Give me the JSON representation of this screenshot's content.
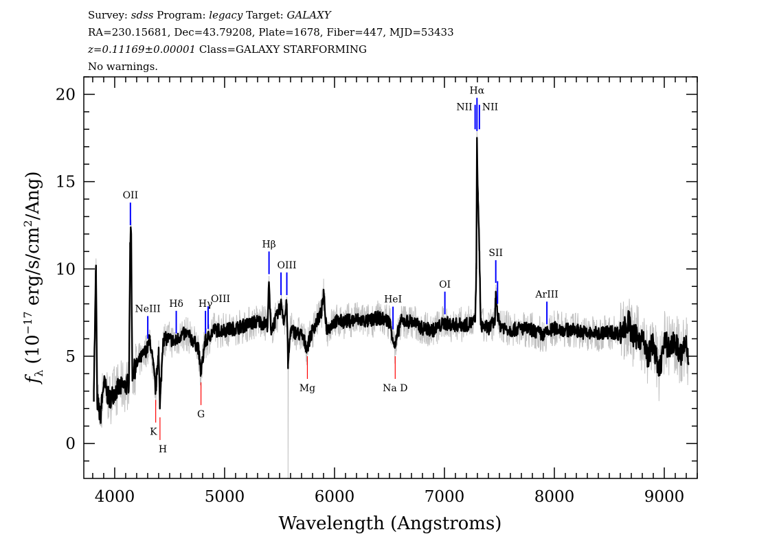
{
  "header": {
    "line1": {
      "survey_label": "Survey: ",
      "survey": "sdss",
      "program_label": " Program: ",
      "program": "legacy",
      "target_label": " Target: ",
      "target": "GALAXY"
    },
    "line2": "RA=230.15681, Dec=43.79208, Plate=1678, Fiber=447, MJD=53433",
    "line3": {
      "z": "z=0.11169±0.00001",
      "class": " Class=GALAXY STARFORMING"
    },
    "line4": "No warnings."
  },
  "chart_data": {
    "type": "line",
    "title": "",
    "xlabel": "Wavelength (Angstroms)",
    "ylabel": {
      "f": "f",
      "sub": "λ",
      "pre": " (10",
      "exp": "−17",
      "mid": " erg/s/cm",
      "exp2": "2",
      "post": "/Ang)"
    },
    "xlim": [
      3719,
      9300
    ],
    "ylim": [
      -2,
      21
    ],
    "x_ticks": [
      4000,
      5000,
      6000,
      7000,
      8000,
      9000
    ],
    "x_tick_labels": [
      "4000",
      "5000",
      "6000",
      "7000",
      "8000",
      "9000"
    ],
    "y_ticks": [
      0,
      5,
      10,
      15,
      20
    ],
    "y_tick_labels": [
      "0",
      "5",
      "10",
      "15",
      "20"
    ],
    "grid": false,
    "colors": {
      "flux": "#000000",
      "error": "#c0c0c0",
      "emission": "#0000ff",
      "absorption": "#ff0000"
    },
    "series": [
      {
        "x": [
          3810,
          3830,
          3840,
          3870,
          3900,
          3950,
          4000,
          4050,
          4100,
          4130,
          4140,
          4150,
          4160,
          4200,
          4250,
          4300,
          4320,
          4350,
          4373,
          4400,
          4411,
          4440,
          4500,
          4550,
          4600,
          4650,
          4700,
          4760,
          4785,
          4820,
          4900,
          5000,
          5100,
          5200,
          5300,
          5390,
          5404,
          5420,
          5480,
          5517,
          5540,
          5566,
          5577,
          5600,
          5700,
          5750,
          5800,
          5880,
          5900,
          5930,
          6000,
          6100,
          6200,
          6300,
          6400,
          6500,
          6550,
          6600,
          6700,
          6800,
          6900,
          7000,
          7100,
          7200,
          7280,
          7290,
          7296,
          7305,
          7318,
          7330,
          7400,
          7460,
          7467,
          7483,
          7500,
          7600,
          7700,
          7800,
          7900,
          8000,
          8100,
          8200,
          8300,
          8400,
          8500,
          8600,
          8680,
          8700,
          8800,
          8850,
          8900,
          8950,
          9000,
          9050,
          9100,
          9150,
          9200,
          9220
        ],
        "y": [
          3.0,
          10.2,
          2.5,
          1.5,
          3.5,
          2.5,
          3.0,
          3.2,
          3.3,
          3.5,
          11.5,
          12.0,
          4.0,
          4.5,
          5.0,
          5.5,
          6.0,
          4.5,
          3.0,
          5.5,
          2.0,
          6.0,
          6.0,
          5.8,
          6.2,
          6.3,
          6.0,
          5.5,
          4.0,
          5.8,
          6.5,
          6.5,
          6.6,
          6.8,
          7.0,
          6.8,
          9.2,
          6.5,
          7.3,
          8.0,
          7.0,
          8.0,
          4.5,
          6.5,
          6.2,
          5.5,
          6.5,
          7.5,
          8.5,
          6.5,
          7.0,
          7.0,
          7.1,
          7.0,
          7.2,
          7.0,
          5.5,
          7.0,
          7.0,
          6.6,
          6.5,
          6.9,
          6.8,
          6.8,
          7.0,
          10.0,
          17.5,
          14.0,
          11.0,
          6.8,
          6.6,
          7.0,
          8.7,
          7.5,
          6.8,
          6.5,
          6.6,
          6.5,
          6.2,
          6.6,
          6.5,
          6.5,
          6.3,
          6.3,
          6.4,
          6.3,
          7.0,
          6.2,
          6.0,
          5.0,
          5.8,
          4.0,
          5.8,
          5.5,
          5.8,
          5.0,
          5.8,
          4.5
        ]
      }
    ],
    "lines": [
      {
        "label": "OII",
        "wavelength": 4143,
        "kind": "emission",
        "align": "center"
      },
      {
        "label": "NeIII",
        "wavelength": 4301,
        "kind": "emission",
        "align": "center"
      },
      {
        "label": "Hδ",
        "wavelength": 4560,
        "kind": "emission",
        "align": "center"
      },
      {
        "label": "Hγ",
        "wavelength": 4826,
        "kind": "emission",
        "align": "center"
      },
      {
        "label": "OIII",
        "wavelength": 4850,
        "kind": "emission",
        "align": "right"
      },
      {
        "label": "Hβ",
        "wavelength": 5404,
        "kind": "emission",
        "align": "center"
      },
      {
        "label": "",
        "wavelength": 5513,
        "kind": "emission",
        "align": "center"
      },
      {
        "label": "OIII",
        "wavelength": 5566,
        "kind": "emission",
        "align": "center"
      },
      {
        "label": "HeI",
        "wavelength": 6532,
        "kind": "emission",
        "align": "center"
      },
      {
        "label": "OI",
        "wavelength": 7004,
        "kind": "emission",
        "align": "center"
      },
      {
        "label": "NII",
        "wavelength": 7279,
        "kind": "emission",
        "align": "left"
      },
      {
        "label": "Hα",
        "wavelength": 7296,
        "kind": "emission",
        "align": "center"
      },
      {
        "label": "NII",
        "wavelength": 7318,
        "kind": "emission",
        "align": "right"
      },
      {
        "label": "SII",
        "wavelength": 7467,
        "kind": "emission",
        "align": "center"
      },
      {
        "label": "",
        "wavelength": 7483,
        "kind": "emission",
        "align": "center"
      },
      {
        "label": "ArIII",
        "wavelength": 7932,
        "kind": "emission",
        "align": "center"
      },
      {
        "label": "K",
        "wavelength": 4373,
        "kind": "absorption",
        "align": "left"
      },
      {
        "label": "H",
        "wavelength": 4412,
        "kind": "absorption",
        "align": "right"
      },
      {
        "label": "G",
        "wavelength": 4785,
        "kind": "absorption",
        "align": "center"
      },
      {
        "label": "Mg",
        "wavelength": 5753,
        "kind": "absorption",
        "align": "center"
      },
      {
        "label": "Na D",
        "wavelength": 6552,
        "kind": "absorption",
        "align": "center"
      }
    ]
  }
}
